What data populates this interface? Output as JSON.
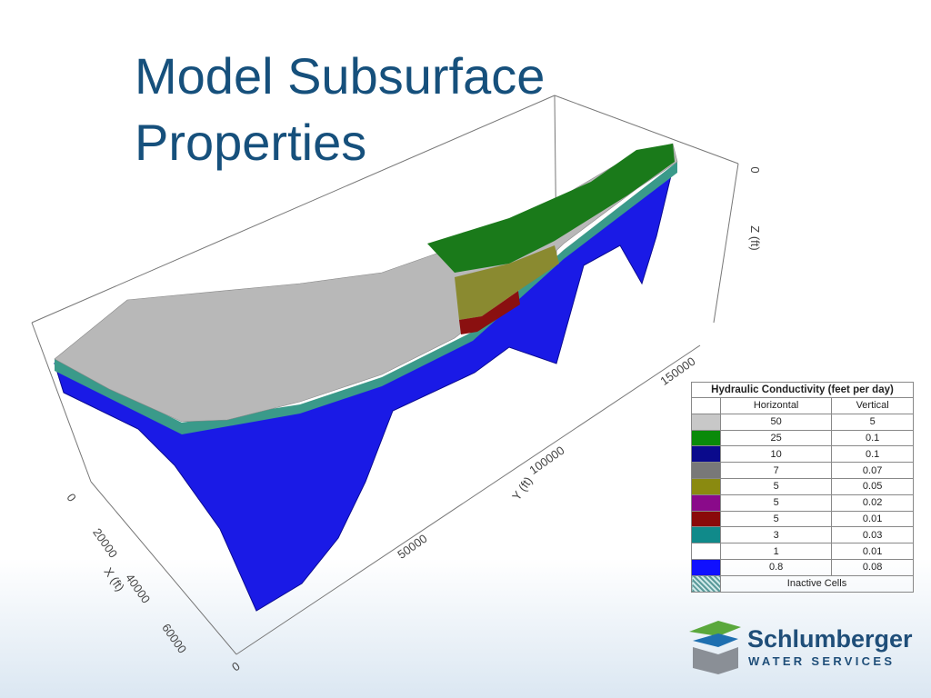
{
  "title": [
    "Model Subsurface",
    "Properties"
  ],
  "axes": {
    "x": {
      "label": "X (ft)",
      "ticks": [
        0,
        20000,
        40000,
        60000
      ]
    },
    "y": {
      "label": "Y (ft)",
      "ticks": [
        0,
        50000,
        100000,
        150000
      ]
    },
    "z": {
      "label": "Z (ft)",
      "ticks": [
        0
      ]
    }
  },
  "legend": {
    "title": "Hydraulic Conductivity (feet per day)",
    "headers": [
      "Horizontal",
      "Vertical"
    ],
    "rows": [
      {
        "color": "#c8c8c8",
        "horizontal": 50,
        "vertical": 5
      },
      {
        "color": "#0a8a0a",
        "horizontal": 25,
        "vertical": 0.1
      },
      {
        "color": "#0a0a8c",
        "horizontal": 10,
        "vertical": 0.1
      },
      {
        "color": "#787878",
        "horizontal": 7,
        "vertical": 0.07
      },
      {
        "color": "#8a8a10",
        "horizontal": 5,
        "vertical": 0.05
      },
      {
        "color": "#8a0a8a",
        "horizontal": 5,
        "vertical": 0.02
      },
      {
        "color": "#8a0a0a",
        "horizontal": 5,
        "vertical": 0.01
      },
      {
        "color": "#108a8a",
        "horizontal": 3,
        "vertical": 0.03
      },
      {
        "color": "#ffffff",
        "horizontal": 1,
        "vertical": 0.01
      },
      {
        "color": "#1010ff",
        "horizontal": 0.8,
        "vertical": 0.08
      }
    ],
    "inactive": "Inactive Cells"
  },
  "logo": {
    "name": "Schlumberger",
    "subtitle": "WATER SERVICES"
  }
}
